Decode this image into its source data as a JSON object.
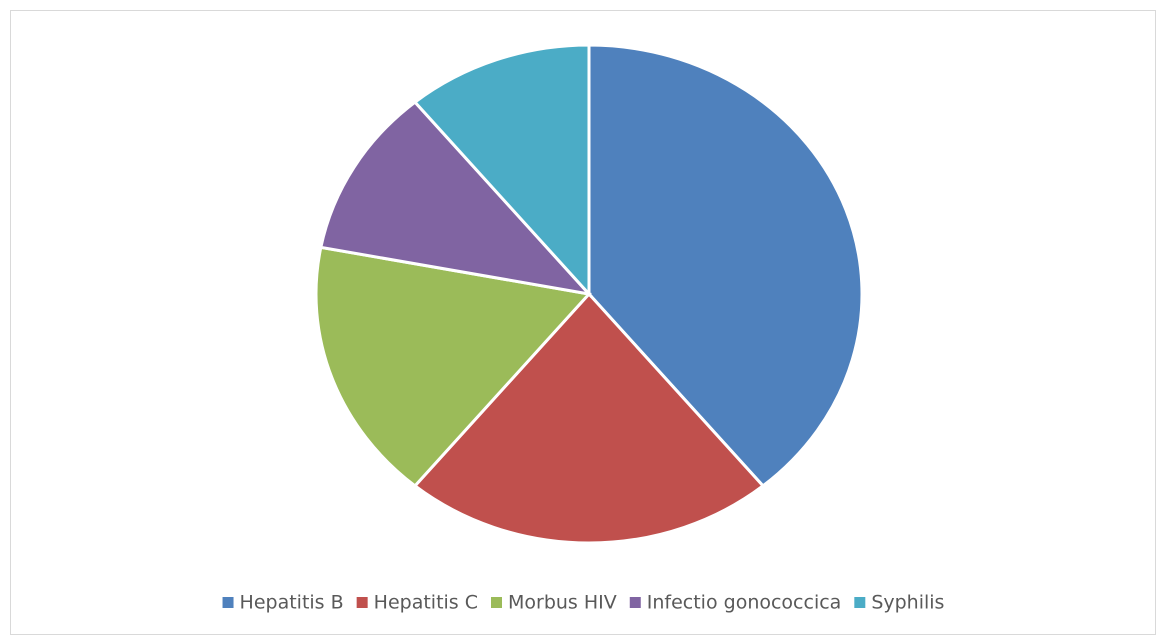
{
  "chart_data": {
    "type": "pie",
    "categories": [
      "Hepatitis B",
      "Hepatitis C",
      "Morbus HIV",
      "Infectio gonococcica",
      "Syphilis"
    ],
    "values": [
      39,
      22,
      17,
      11,
      11
    ],
    "colors": [
      "#4f81bd",
      "#c0504d",
      "#9bbb59",
      "#8064a2",
      "#4bacc6"
    ],
    "legend": "bottom"
  }
}
